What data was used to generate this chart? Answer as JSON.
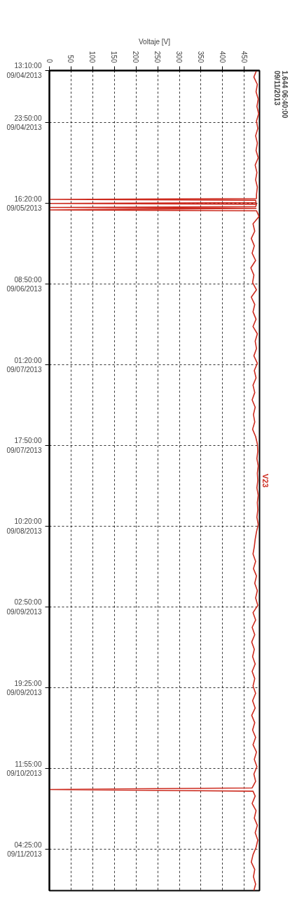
{
  "chart_data": {
    "type": "line",
    "orientation": "horizontal",
    "xlabel": "Voltaje [V]",
    "annotations": [
      "1.644 06:40:00\n09/11/2013"
    ],
    "xlim": [
      0,
      485
    ],
    "xticks": [
      0,
      50,
      100,
      150,
      200,
      250,
      300,
      350,
      400,
      450
    ],
    "ylim": [
      "2013-09-11T12:50",
      "2013-09-04T13:10"
    ],
    "yticks": [
      {
        "value": "2013-09-04T13:10",
        "label": "13:10:00\n09/04/2013"
      },
      {
        "value": "2013-09-04T23:50",
        "label": "23:50:00\n09/04/2013"
      },
      {
        "value": "2013-09-05T16:20",
        "label": "16:20:00\n09/05/2013"
      },
      {
        "value": "2013-09-06T08:50",
        "label": "08:50:00\n09/06/2013"
      },
      {
        "value": "2013-09-07T01:20",
        "label": "01:20:00\n09/07/2013"
      },
      {
        "value": "2013-09-07T17:50",
        "label": "17:50:00\n09/07/2013"
      },
      {
        "value": "2013-09-08T10:20",
        "label": "10:20:00\n09/08/2013"
      },
      {
        "value": "2013-09-09T02:50",
        "label": "02:50:00\n09/09/2013"
      },
      {
        "value": "2013-09-09T19:25",
        "label": "19:25:00\n09/09/2013"
      },
      {
        "value": "2013-09-10T11:55",
        "label": "11:55:00\n09/10/2013"
      },
      {
        "value": "2013-09-11T04:25",
        "label": "04:25:00\n09/11/2013"
      }
    ],
    "grid": true,
    "line_style": "solid",
    "marker": "none",
    "series": [
      {
        "name": "V23",
        "color": "#cc2a1e",
        "x": [
          "2013-09-04T13:10",
          "2013-09-04T14:30",
          "2013-09-04T16:00",
          "2013-09-04T17:30",
          "2013-09-04T19:00",
          "2013-09-04T20:30",
          "2013-09-04T22:00",
          "2013-09-04T23:30",
          "2013-09-05T01:00",
          "2013-09-05T02:30",
          "2013-09-05T04:00",
          "2013-09-05T05:30",
          "2013-09-05T07:00",
          "2013-09-05T08:30",
          "2013-09-05T10:00",
          "2013-09-05T11:30",
          "2013-09-05T13:00",
          "2013-09-05T14:30",
          "2013-09-05T15:20",
          "2013-09-05T15:30",
          "2013-09-05T15:40",
          "2013-09-05T16:10",
          "2013-09-05T16:20",
          "2013-09-05T16:30",
          "2013-09-05T17:00",
          "2013-09-05T17:10",
          "2013-09-05T17:20",
          "2013-09-05T17:40",
          "2013-09-05T17:50",
          "2013-09-05T19:00",
          "2013-09-05T20:30",
          "2013-09-05T22:00",
          "2013-09-05T23:30",
          "2013-09-06T01:00",
          "2013-09-06T02:30",
          "2013-09-06T04:00",
          "2013-09-06T05:30",
          "2013-09-06T07:00",
          "2013-09-06T08:30",
          "2013-09-06T10:00",
          "2013-09-06T11:30",
          "2013-09-06T13:00",
          "2013-09-06T14:30",
          "2013-09-06T16:00",
          "2013-09-06T17:30",
          "2013-09-06T19:00",
          "2013-09-06T20:30",
          "2013-09-06T22:00",
          "2013-09-06T23:30",
          "2013-09-07T01:00",
          "2013-09-07T02:30",
          "2013-09-07T04:00",
          "2013-09-07T05:30",
          "2013-09-07T07:00",
          "2013-09-07T08:30",
          "2013-09-07T10:00",
          "2013-09-07T11:30",
          "2013-09-07T13:00",
          "2013-09-07T14:30",
          "2013-09-07T16:00",
          "2013-09-07T17:30",
          "2013-09-07T19:00",
          "2013-09-07T20:30",
          "2013-09-07T22:00",
          "2013-09-07T23:30",
          "2013-09-08T01:00",
          "2013-09-08T02:30",
          "2013-09-08T04:00",
          "2013-09-08T05:30",
          "2013-09-08T07:00",
          "2013-09-08T08:30",
          "2013-09-08T10:00",
          "2013-09-08T11:30",
          "2013-09-08T13:00",
          "2013-09-08T14:30",
          "2013-09-08T16:00",
          "2013-09-08T17:30",
          "2013-09-08T19:00",
          "2013-09-08T20:30",
          "2013-09-08T22:00",
          "2013-09-08T23:30",
          "2013-09-09T01:00",
          "2013-09-09T02:30",
          "2013-09-09T04:00",
          "2013-09-09T05:30",
          "2013-09-09T07:00",
          "2013-09-09T08:30",
          "2013-09-09T10:00",
          "2013-09-09T11:30",
          "2013-09-09T13:00",
          "2013-09-09T14:30",
          "2013-09-09T16:00",
          "2013-09-09T17:30",
          "2013-09-09T19:00",
          "2013-09-09T20:30",
          "2013-09-09T22:00",
          "2013-09-09T23:30",
          "2013-09-10T01:00",
          "2013-09-10T02:30",
          "2013-09-10T04:00",
          "2013-09-10T05:30",
          "2013-09-10T07:00",
          "2013-09-10T08:30",
          "2013-09-10T10:00",
          "2013-09-10T11:30",
          "2013-09-10T13:00",
          "2013-09-10T14:30",
          "2013-09-10T15:50",
          "2013-09-10T16:10",
          "2013-09-10T16:30",
          "2013-09-10T17:30",
          "2013-09-10T19:00",
          "2013-09-10T20:30",
          "2013-09-10T22:00",
          "2013-09-10T23:30",
          "2013-09-11T01:00",
          "2013-09-11T02:30",
          "2013-09-11T04:00",
          "2013-09-11T05:30",
          "2013-09-11T07:00",
          "2013-09-11T08:30",
          "2013-09-11T10:00",
          "2013-09-11T11:30",
          "2013-09-11T12:50"
        ],
        "values": [
          478,
          472,
          480,
          477,
          482,
          479,
          483,
          478,
          481,
          476,
          480,
          477,
          482,
          475,
          479,
          476,
          480,
          478,
          478,
          0,
          476,
          477,
          0,
          478,
          476,
          0,
          477,
          0,
          478,
          484,
          470,
          474,
          466,
          473,
          468,
          476,
          465,
          472,
          469,
          478,
          466,
          474,
          470,
          477,
          470,
          480,
          475,
          478,
          472,
          480,
          473,
          477,
          470,
          474,
          468,
          475,
          471,
          474,
          469,
          476,
          480,
          481,
          479,
          482,
          480,
          481,
          479,
          482,
          480,
          481,
          479,
          482,
          478,
          475,
          473,
          470,
          476,
          471,
          478,
          474,
          480,
          476,
          481,
          470,
          476,
          468,
          474,
          467,
          473,
          469,
          475,
          468,
          474,
          470,
          476,
          469,
          475,
          467,
          474,
          469,
          476,
          470,
          478,
          473,
          479,
          472,
          476,
          468,
          0,
          470,
          475,
          468,
          477,
          473,
          480,
          475,
          481,
          477,
          470,
          466,
          474,
          471,
          476,
          472
        ]
      }
    ]
  }
}
